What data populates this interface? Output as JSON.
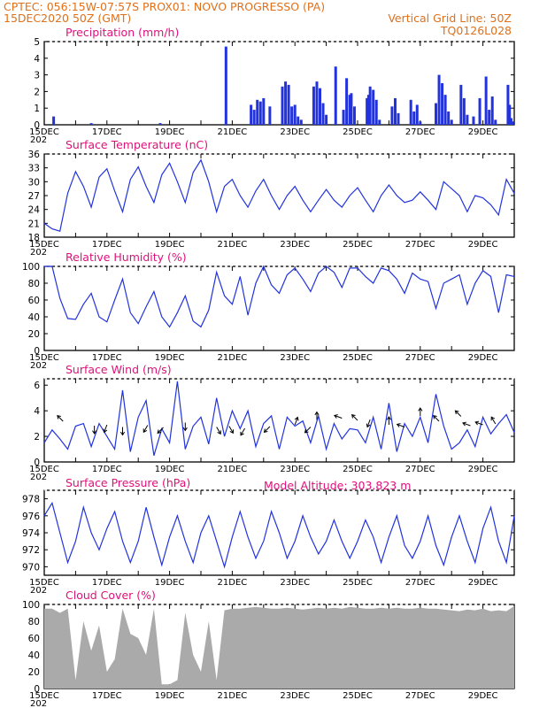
{
  "header": {
    "line1_left": "CPTEC:   056:15W-07:57S   PROX01: NOVO PROGRESSO (PA)",
    "line2_left": "15DEC2020 50Z (GMT)",
    "line2_right": "Vertical Grid Line: 50Z",
    "line3_right": "TQ0126L028"
  },
  "colors": {
    "header": "#e0701a",
    "title": "#e0107a",
    "series": "#2233dd",
    "cloud": "#aaaaaa",
    "grid": "#000000"
  },
  "x_axis": {
    "labels": [
      "15DEC",
      "17DEC",
      "19DEC",
      "21DEC",
      "23DEC",
      "25DEC",
      "27DEC",
      "29DEC"
    ],
    "label_days": [
      0,
      2,
      4,
      6,
      8,
      10,
      12,
      14
    ],
    "year_stub": "202",
    "day_range": [
      0,
      15
    ]
  },
  "chart_data": [
    {
      "type": "bar",
      "title": "Precipitation (mm/h)",
      "ylim": [
        0,
        5
      ],
      "yticks": [
        "0",
        "1",
        "2",
        "3",
        "4",
        "5"
      ],
      "x_days": [
        0.3,
        1.5,
        3.7,
        5.8,
        6.6,
        6.7,
        6.8,
        6.9,
        7.0,
        7.2,
        7.6,
        7.7,
        7.8,
        7.9,
        8.0,
        8.1,
        8.2,
        8.6,
        8.7,
        8.8,
        8.9,
        9.0,
        9.3,
        9.55,
        9.65,
        9.75,
        9.8,
        9.9,
        10.3,
        10.35,
        10.4,
        10.5,
        10.6,
        10.7,
        11.1,
        11.2,
        11.3,
        11.7,
        11.8,
        11.9,
        12.0,
        12.5,
        12.6,
        12.7,
        12.8,
        12.9,
        13.0,
        13.3,
        13.4,
        13.5,
        13.7,
        13.9,
        14.1,
        14.2,
        14.3,
        14.4,
        14.8,
        14.85,
        14.9,
        14.95
      ],
      "values": [
        0.5,
        0.1,
        0.1,
        4.7,
        1.2,
        0.9,
        1.5,
        1.4,
        1.6,
        1.1,
        2.3,
        2.6,
        2.4,
        1.1,
        1.2,
        0.5,
        0.3,
        2.3,
        2.6,
        2.2,
        1.3,
        0.6,
        3.5,
        0.9,
        2.8,
        1.8,
        1.9,
        1.1,
        1.6,
        1.8,
        2.3,
        2.1,
        1.5,
        0.3,
        1.1,
        1.6,
        0.7,
        1.5,
        0.8,
        1.2,
        0.2,
        1.3,
        3.0,
        2.5,
        1.8,
        0.8,
        0.3,
        2.4,
        1.6,
        0.6,
        0.5,
        1.6,
        2.9,
        0.9,
        1.7,
        0.3,
        2.4,
        1.2,
        0.4,
        0.2
      ]
    },
    {
      "type": "line",
      "title": "Surface Temperature (nC)",
      "ylim": [
        18,
        36
      ],
      "yticks": [
        "18",
        "21",
        "24",
        "27",
        "30",
        "33",
        "36"
      ],
      "x_days": [
        0,
        0.25,
        0.5,
        0.75,
        1.0,
        1.25,
        1.5,
        1.75,
        2.0,
        2.25,
        2.5,
        2.75,
        3.0,
        3.25,
        3.5,
        3.75,
        4.0,
        4.25,
        4.5,
        4.75,
        5.0,
        5.25,
        5.5,
        5.75,
        6.0,
        6.25,
        6.5,
        6.75,
        7.0,
        7.25,
        7.5,
        7.75,
        8.0,
        8.25,
        8.5,
        8.75,
        9.0,
        9.25,
        9.5,
        9.75,
        10.0,
        10.25,
        10.5,
        10.75,
        11.0,
        11.25,
        11.5,
        11.75,
        12.0,
        12.25,
        12.5,
        12.75,
        13.0,
        13.25,
        13.5,
        13.75,
        14.0,
        14.25,
        14.5,
        14.75,
        15.0
      ],
      "values": [
        21,
        19.8,
        19.3,
        27.5,
        32.2,
        29,
        24.5,
        31,
        32.8,
        28,
        23.5,
        30.5,
        33.2,
        29,
        25.5,
        31.5,
        34.0,
        30,
        25.5,
        32,
        34.7,
        30,
        23.5,
        29,
        30.5,
        27,
        24.5,
        28,
        30.5,
        27,
        24.0,
        27,
        29.0,
        26,
        23.5,
        26,
        28.3,
        26,
        24.5,
        27,
        28.7,
        26,
        23.5,
        27,
        29.3,
        27,
        25.5,
        26,
        27.8,
        26,
        24.0,
        30,
        28.5,
        27,
        23.5,
        27,
        26.5,
        25,
        22.8,
        30.5,
        27.5
      ]
    },
    {
      "type": "line",
      "title": "Relative Humidity (%)",
      "ylim": [
        0,
        100
      ],
      "yticks": [
        "0",
        "20",
        "40",
        "60",
        "80",
        "100"
      ],
      "x_days": [
        0,
        0.25,
        0.5,
        0.75,
        1.0,
        1.25,
        1.5,
        1.75,
        2.0,
        2.25,
        2.5,
        2.75,
        3.0,
        3.25,
        3.5,
        3.75,
        4.0,
        4.25,
        4.5,
        4.75,
        5.0,
        5.25,
        5.5,
        5.75,
        6.0,
        6.25,
        6.5,
        6.75,
        7.0,
        7.25,
        7.5,
        7.75,
        8.0,
        8.25,
        8.5,
        8.75,
        9.0,
        9.25,
        9.5,
        9.75,
        10.0,
        10.25,
        10.5,
        10.75,
        11.0,
        11.25,
        11.5,
        11.75,
        12.0,
        12.25,
        12.5,
        12.75,
        13.0,
        13.25,
        13.5,
        13.75,
        14.0,
        14.25,
        14.5,
        14.75,
        15.0
      ],
      "values": [
        100,
        100,
        62,
        38,
        37,
        55,
        68,
        40,
        34,
        60,
        85,
        45,
        32,
        52,
        70,
        40,
        28,
        45,
        65,
        35,
        28,
        48,
        93,
        65,
        55,
        88,
        42,
        80,
        100,
        78,
        68,
        90,
        98,
        85,
        70,
        92,
        100,
        93,
        75,
        98,
        98,
        88,
        80,
        98,
        95,
        85,
        68,
        92,
        85,
        82,
        50,
        80,
        85,
        90,
        55,
        80,
        95,
        88,
        45,
        90,
        88
      ]
    },
    {
      "type": "line",
      "title": "Surface Wind (m/s)",
      "ylim": [
        0,
        6.5
      ],
      "yticks": [
        "0",
        "2",
        "4",
        "6"
      ],
      "x_days": [
        0,
        0.25,
        0.5,
        0.75,
        1.0,
        1.25,
        1.5,
        1.75,
        2.0,
        2.25,
        2.5,
        2.75,
        3.0,
        3.25,
        3.5,
        3.75,
        4.0,
        4.25,
        4.5,
        4.75,
        5.0,
        5.25,
        5.5,
        5.75,
        6.0,
        6.25,
        6.5,
        6.75,
        7.0,
        7.25,
        7.5,
        7.75,
        8.0,
        8.25,
        8.5,
        8.75,
        9.0,
        9.25,
        9.5,
        9.75,
        10.0,
        10.25,
        10.5,
        10.75,
        11.0,
        11.25,
        11.5,
        11.75,
        12.0,
        12.25,
        12.5,
        12.75,
        13.0,
        13.25,
        13.5,
        13.75,
        14.0,
        14.25,
        14.5,
        14.75,
        15.0
      ],
      "values": [
        1.5,
        2.5,
        1.8,
        1.0,
        2.8,
        3.0,
        1.2,
        3.0,
        2.0,
        1.0,
        5.6,
        0.8,
        3.5,
        4.8,
        0.5,
        2.6,
        1.5,
        6.3,
        1.0,
        2.8,
        3.5,
        1.4,
        5.0,
        2.0,
        4.0,
        2.6,
        4.0,
        1.2,
        3.0,
        3.6,
        1.0,
        3.5,
        2.8,
        3.2,
        1.5,
        3.6,
        1.0,
        3.0,
        1.8,
        2.6,
        2.5,
        1.5,
        3.5,
        1.0,
        4.6,
        0.8,
        3.0,
        2.0,
        3.5,
        1.5,
        5.3,
        2.8,
        1.0,
        1.5,
        2.5,
        1.2,
        3.5,
        2.2,
        3.0,
        3.7,
        2.3
      ],
      "arrows": [
        {
          "day": 0.6,
          "dir_deg": 135
        },
        {
          "day": 1.6,
          "dir_deg": 270
        },
        {
          "day": 2.0,
          "dir_deg": 250
        },
        {
          "day": 2.5,
          "dir_deg": 270
        },
        {
          "day": 3.3,
          "dir_deg": 240
        },
        {
          "day": 3.8,
          "dir_deg": 225
        },
        {
          "day": 4.5,
          "dir_deg": 270
        },
        {
          "day": 5.5,
          "dir_deg": 300
        },
        {
          "day": 5.9,
          "dir_deg": 300
        },
        {
          "day": 6.4,
          "dir_deg": 240
        },
        {
          "day": 7.2,
          "dir_deg": 225
        },
        {
          "day": 8.0,
          "dir_deg": 70
        },
        {
          "day": 8.5,
          "dir_deg": 225
        },
        {
          "day": 8.7,
          "dir_deg": 90
        },
        {
          "day": 9.5,
          "dir_deg": 160
        },
        {
          "day": 10.0,
          "dir_deg": 135
        },
        {
          "day": 10.4,
          "dir_deg": 250
        },
        {
          "day": 11.0,
          "dir_deg": 90
        },
        {
          "day": 11.5,
          "dir_deg": 160
        },
        {
          "day": 12.0,
          "dir_deg": 90
        },
        {
          "day": 12.6,
          "dir_deg": 135
        },
        {
          "day": 13.3,
          "dir_deg": 135
        },
        {
          "day": 13.6,
          "dir_deg": 160
        },
        {
          "day": 14.0,
          "dir_deg": 160
        },
        {
          "day": 14.4,
          "dir_deg": 120
        }
      ]
    },
    {
      "type": "line",
      "title": "Surface Pressure (hPa)",
      "ylim": [
        969,
        979
      ],
      "yticks": [
        "970",
        "972",
        "974",
        "976",
        "978"
      ],
      "x_days": [
        0,
        0.25,
        0.5,
        0.75,
        1.0,
        1.25,
        1.5,
        1.75,
        2.0,
        2.25,
        2.5,
        2.75,
        3.0,
        3.25,
        3.5,
        3.75,
        4.0,
        4.25,
        4.5,
        4.75,
        5.0,
        5.25,
        5.5,
        5.75,
        6.0,
        6.25,
        6.5,
        6.75,
        7.0,
        7.25,
        7.5,
        7.75,
        8.0,
        8.25,
        8.5,
        8.75,
        9.0,
        9.25,
        9.5,
        9.75,
        10.0,
        10.25,
        10.5,
        10.75,
        11.0,
        11.25,
        11.5,
        11.75,
        12.0,
        12.25,
        12.5,
        12.75,
        13.0,
        13.25,
        13.5,
        13.75,
        14.0,
        14.25,
        14.5,
        14.75,
        15.0
      ],
      "values": [
        976,
        977.5,
        974,
        970.5,
        973,
        977,
        974,
        972,
        974.5,
        976.5,
        973,
        970.5,
        973,
        977,
        973.5,
        970.2,
        973.5,
        976,
        973,
        970.5,
        974,
        976,
        973,
        970,
        973.5,
        976.5,
        973.5,
        971,
        973,
        976.5,
        974,
        971,
        973,
        976,
        973.5,
        971.5,
        973,
        975.5,
        973,
        971,
        973,
        975.5,
        973.5,
        970.5,
        973.5,
        976,
        972.5,
        971,
        973,
        976,
        972.5,
        970.2,
        973.5,
        976,
        973,
        970.5,
        974.5,
        977,
        973,
        970.5,
        976
      ]
    },
    {
      "type": "area",
      "title": "Cloud Cover (%)",
      "ylim": [
        0,
        100
      ],
      "yticks": [
        "0",
        "20",
        "40",
        "60",
        "80",
        "100"
      ],
      "x_days": [
        0,
        0.25,
        0.5,
        0.75,
        1.0,
        1.25,
        1.5,
        1.75,
        2.0,
        2.25,
        2.5,
        2.75,
        3.0,
        3.25,
        3.5,
        3.75,
        4.0,
        4.25,
        4.5,
        4.75,
        5.0,
        5.25,
        5.5,
        5.75,
        6.0,
        6.25,
        6.5,
        6.75,
        7.0,
        7.25,
        7.5,
        7.75,
        8.0,
        8.25,
        8.5,
        8.75,
        9.0,
        9.25,
        9.5,
        9.75,
        10.0,
        10.25,
        10.5,
        10.75,
        11.0,
        11.25,
        11.5,
        11.75,
        12.0,
        12.25,
        12.5,
        12.75,
        13.0,
        13.25,
        13.5,
        13.75,
        14.0,
        14.25,
        14.5,
        14.75,
        15.0
      ],
      "values": [
        95,
        95,
        90,
        95,
        10,
        80,
        45,
        75,
        20,
        35,
        95,
        65,
        60,
        40,
        95,
        5,
        5,
        10,
        90,
        40,
        20,
        80,
        10,
        93,
        95,
        95,
        96,
        97,
        96,
        95,
        95,
        96,
        95,
        94,
        95,
        96,
        95,
        96,
        95,
        97,
        96,
        95,
        95,
        96,
        95,
        96,
        95,
        95,
        96,
        95,
        95,
        94,
        93,
        92,
        94,
        93,
        95,
        92,
        93,
        92,
        98
      ]
    }
  ],
  "altitude_label": "Model Altitude: 303.823 m"
}
